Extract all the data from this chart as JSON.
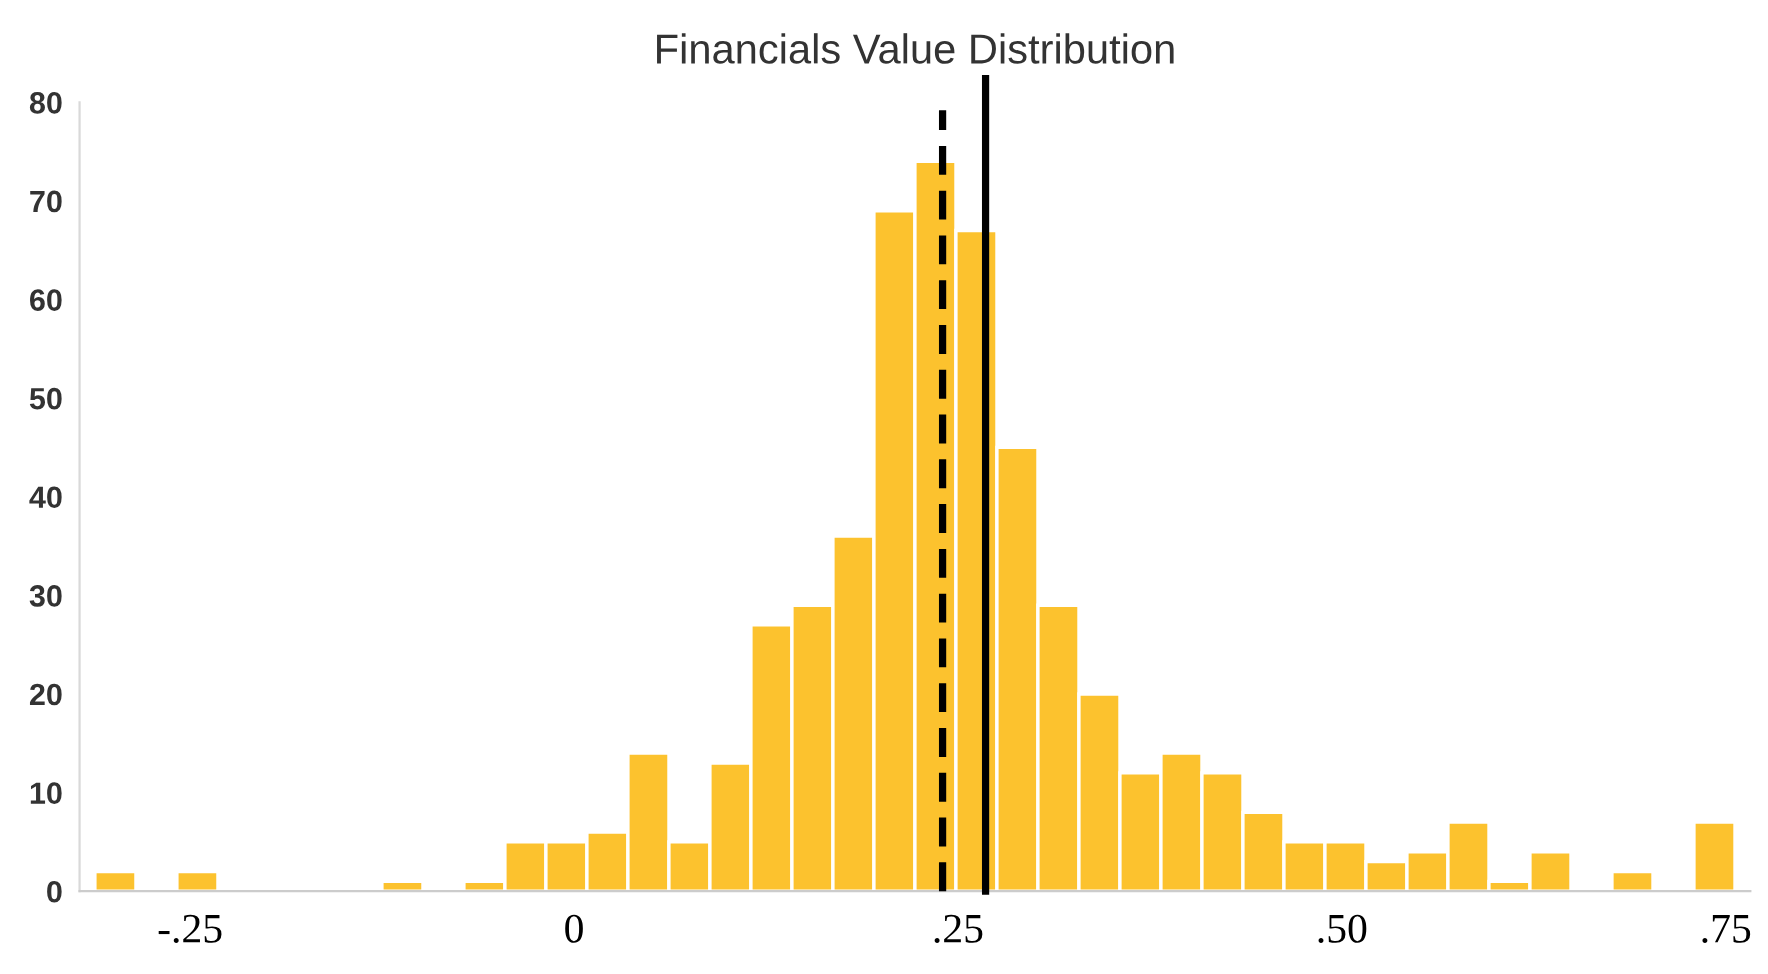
{
  "chart_data": {
    "type": "histogram",
    "title": "Financials Value Distribution",
    "bins": [
      -0.312,
      -0.2853,
      -0.2586,
      -0.2319,
      -0.2052,
      -0.1785,
      -0.1518,
      -0.1251,
      -0.0984,
      -0.0717,
      -0.045,
      -0.0183,
      0.0084,
      0.0351,
      0.0618,
      0.0885,
      0.1152,
      0.1419,
      0.1686,
      0.1953,
      0.222,
      0.2487,
      0.2754,
      0.3021,
      0.3288,
      0.3555,
      0.3822,
      0.4089,
      0.4356,
      0.4623,
      0.489,
      0.5157,
      0.5424,
      0.5691,
      0.5958,
      0.6225,
      0.6492,
      0.6759,
      0.7026,
      0.7293,
      0.756
    ],
    "values": [
      2,
      0,
      2,
      0,
      0,
      0,
      0,
      1,
      0,
      1,
      5,
      5,
      6,
      14,
      5,
      13,
      27,
      29,
      36,
      69,
      74,
      67,
      45,
      29,
      20,
      12,
      14,
      12,
      8,
      5,
      5,
      3,
      4,
      7,
      1,
      4,
      0,
      2,
      0,
      7
    ],
    "color": "#fcc22e",
    "xlim": [
      -0.322,
      0.766
    ],
    "xticks": [
      {
        "value": -0.25,
        "label": "-.25"
      },
      0,
      {
        "value": 0.25,
        "label": ".25"
      },
      {
        "value": 0.5,
        "label": ".50"
      },
      {
        "value": 0.75,
        "label": ".75"
      }
    ],
    "ylim": [
      0,
      80
    ],
    "yticks": [
      0,
      10,
      20,
      30,
      40,
      50,
      60,
      70,
      80
    ],
    "ref_lines": [
      {
        "axis": "x",
        "value": 0.24,
        "line_style": "dashed",
        "color": "#000000"
      },
      {
        "axis": "x",
        "value": 0.268,
        "line_style": "solid",
        "color": "#000000"
      }
    ],
    "grid": false
  }
}
